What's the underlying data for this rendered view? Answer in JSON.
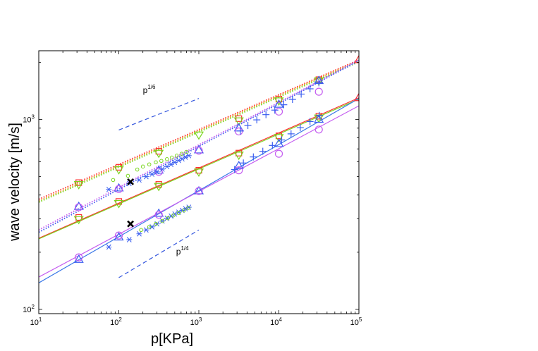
{
  "chart_data": {
    "type": "scatter",
    "title": "",
    "xlabel": "p[KPa]",
    "ylabel": "wave velocity [m/s]",
    "xscale": "log",
    "yscale": "log",
    "xlim": [
      10,
      100000
    ],
    "ylim": [
      95,
      2300
    ],
    "x_tick_labels": [
      {
        "base": "10",
        "exp": "1",
        "value": 10
      },
      {
        "base": "10",
        "exp": "2",
        "value": 100
      },
      {
        "base": "10",
        "exp": "3",
        "value": 1000
      },
      {
        "base": "10",
        "exp": "4",
        "value": 10000
      },
      {
        "base": "10",
        "exp": "5",
        "value": 100000
      }
    ],
    "y_tick_labels": [
      {
        "base": "10",
        "exp": "2",
        "value": 100
      },
      {
        "base": "10",
        "exp": "3",
        "value": 1000
      }
    ],
    "annotations": [
      {
        "text_base": "p",
        "text_exp": "1/6",
        "x": 200,
        "y": 1380
      },
      {
        "text_base": "p",
        "text_exp": "1/4",
        "x": 520,
        "y": 195
      }
    ],
    "slope_guides": [
      {
        "name": "p^1/6 guide",
        "x": [
          100,
          1000
        ],
        "y": [
          880,
          1290
        ],
        "color": "#3355dd"
      },
      {
        "name": "p^1/4 guide",
        "x": [
          100,
          1000
        ],
        "y": [
          147,
          262
        ],
        "color": "#3355dd"
      }
    ],
    "series": [
      {
        "name": "upper fit red",
        "kind": "line",
        "style": "dotted",
        "color": "#ff3030",
        "x": [
          10,
          100000
        ],
        "y": [
          380,
          2060
        ]
      },
      {
        "name": "upper fit orange",
        "kind": "line",
        "style": "dotted",
        "color": "#f0a020",
        "x": [
          10,
          100000
        ],
        "y": [
          372,
          2040
        ]
      },
      {
        "name": "upper fit green",
        "kind": "line",
        "style": "dotted",
        "color": "#7ad61f",
        "x": [
          10,
          100000
        ],
        "y": [
          367,
          2010
        ]
      },
      {
        "name": "upper fit violet",
        "kind": "line",
        "style": "dotted",
        "color": "#c45cf0",
        "x": [
          10,
          100000
        ],
        "y": [
          262,
          2060
        ]
      },
      {
        "name": "upper fit blue",
        "kind": "line",
        "style": "dotted",
        "color": "#4a5ef0",
        "x": [
          10,
          100000
        ],
        "y": [
          255,
          2040
        ]
      },
      {
        "name": "lower fit red",
        "kind": "line",
        "style": "solid",
        "color": "#ff3030",
        "x": [
          10,
          100000
        ],
        "y": [
          237,
          1300
        ]
      },
      {
        "name": "lower fit green",
        "kind": "line",
        "style": "solid",
        "color": "#7ad61f",
        "x": [
          10,
          100000
        ],
        "y": [
          235,
          1280
        ]
      },
      {
        "name": "lower fit blue",
        "kind": "line",
        "style": "solid",
        "color": "#3a78e8",
        "x": [
          10,
          100000
        ],
        "y": [
          138,
          1290
        ]
      },
      {
        "name": "lower fit violet",
        "kind": "line",
        "style": "solid",
        "color": "#c45cf0",
        "x": [
          10,
          100000
        ],
        "y": [
          148,
          1180
        ]
      },
      {
        "name": "red squares (upper)",
        "kind": "marker",
        "marker": "square",
        "color": "#ff3030",
        "x": [
          31.6,
          100,
          316,
          3160,
          10000,
          31600
        ],
        "y": [
          465,
          560,
          680,
          1010,
          1280,
          1620
        ]
      },
      {
        "name": "red squares (lower)",
        "kind": "marker",
        "marker": "square",
        "color": "#ff3030",
        "x": [
          31.6,
          100,
          316,
          1000,
          3160,
          10000,
          31600
        ],
        "y": [
          305,
          370,
          455,
          540,
          665,
          820,
          1040
        ]
      },
      {
        "name": "green triangles down (upper)",
        "kind": "marker",
        "marker": "triangle-down",
        "color": "#7ad61f",
        "x": [
          31.6,
          100,
          316,
          1000,
          3160,
          10000,
          31600
        ],
        "y": [
          455,
          545,
          665,
          830,
          985,
          1255,
          1600
        ]
      },
      {
        "name": "green triangles down (lower)",
        "kind": "marker",
        "marker": "triangle-down",
        "color": "#7ad61f",
        "x": [
          31.6,
          100,
          316,
          1000,
          3160,
          10000,
          31600
        ],
        "y": [
          298,
          362,
          445,
          530,
          650,
          805,
          1020
        ]
      },
      {
        "name": "red triangles up (upper)",
        "kind": "marker",
        "marker": "triangle-up",
        "color": "#ff3030",
        "x": [
          100000
        ],
        "y": [
          2060
        ]
      },
      {
        "name": "blue triangles up (upper)",
        "kind": "marker",
        "marker": "triangle-up",
        "color": "#3a5ef0",
        "x": [
          31.6,
          100,
          316,
          1000,
          3160,
          10000,
          31600
        ],
        "y": [
          348,
          435,
          540,
          690,
          900,
          1200,
          1600
        ]
      },
      {
        "name": "blue triangles up (lower)",
        "kind": "marker",
        "marker": "triangle-up",
        "color": "#3a5ef0",
        "x": [
          31.6,
          100,
          316,
          1000,
          3160,
          10000,
          31600,
          100000
        ],
        "y": [
          183,
          240,
          320,
          420,
          570,
          745,
          1000,
          1300
        ]
      },
      {
        "name": "violet circles (upper)",
        "kind": "marker",
        "marker": "circle",
        "color": "#c45cf0",
        "x": [
          31.6,
          100,
          316,
          1000,
          3160,
          10000,
          31600
        ],
        "y": [
          345,
          430,
          530,
          685,
          865,
          1100,
          1400
        ]
      },
      {
        "name": "violet circles (lower)",
        "kind": "marker",
        "marker": "circle",
        "color": "#c45cf0",
        "x": [
          31.6,
          100,
          316,
          1000,
          3160,
          10000,
          31600
        ],
        "y": [
          188,
          245,
          315,
          420,
          540,
          660,
          885
        ]
      },
      {
        "name": "red triangles up (lower)",
        "kind": "marker",
        "marker": "triangle-up",
        "color": "#ff3030",
        "x": [
          100000
        ],
        "y": [
          1300
        ]
      },
      {
        "name": "blue plus (upper)",
        "kind": "marker",
        "marker": "plus",
        "color": "#3a5ef0",
        "x": [
          3300,
          4100,
          5300,
          6900,
          8900,
          11500,
          14800,
          19000,
          24500,
          31600
        ],
        "y": [
          870,
          930,
          995,
          1060,
          1120,
          1195,
          1275,
          1360,
          1450,
          1560
        ]
      },
      {
        "name": "blue plus (lower)",
        "kind": "marker",
        "marker": "plus",
        "color": "#3a5ef0",
        "x": [
          2800,
          3600,
          4800,
          6300,
          8300,
          10800,
          14200,
          18500,
          24500,
          32000
        ],
        "y": [
          545,
          590,
          635,
          680,
          730,
          780,
          840,
          905,
          975,
          1050
        ]
      },
      {
        "name": "blue asterisks (upper)",
        "kind": "marker",
        "marker": "asterisk",
        "color": "#3a5ef0",
        "x": [
          75,
          135,
          180,
          220,
          260,
          300,
          350,
          400,
          450,
          500,
          560,
          620,
          680,
          750
        ],
        "y": [
          428,
          460,
          480,
          500,
          515,
          530,
          548,
          565,
          580,
          595,
          608,
          620,
          633,
          645
        ]
      },
      {
        "name": "blue asterisks (lower)",
        "kind": "marker",
        "marker": "asterisk",
        "color": "#3a5ef0",
        "x": [
          75,
          135,
          180,
          220,
          260,
          300,
          350,
          400,
          450,
          500,
          560,
          620,
          680,
          750
        ],
        "y": [
          213,
          233,
          250,
          262,
          272,
          282,
          292,
          302,
          310,
          318,
          325,
          332,
          339,
          345
        ]
      },
      {
        "name": "green small circles (upper)",
        "kind": "marker",
        "marker": "small-circle",
        "color": "#7ad61f",
        "x": [
          85,
          130,
          170,
          200,
          240,
          290,
          340,
          400,
          460,
          530,
          610,
          700
        ],
        "y": [
          480,
          505,
          545,
          565,
          580,
          595,
          605,
          618,
          630,
          645,
          660,
          675
        ]
      },
      {
        "name": "green small circles (lower)",
        "kind": "marker",
        "marker": "small-circle",
        "color": "#7ad61f",
        "x": [
          190,
          240,
          290,
          350,
          410,
          480,
          560,
          650,
          740
        ],
        "y": [
          262,
          272,
          282,
          292,
          302,
          312,
          322,
          332,
          342
        ]
      },
      {
        "name": "black crosses",
        "kind": "marker",
        "marker": "x",
        "color": "#000000",
        "x": [
          140,
          140
        ],
        "y": [
          470,
          282
        ]
      }
    ]
  }
}
